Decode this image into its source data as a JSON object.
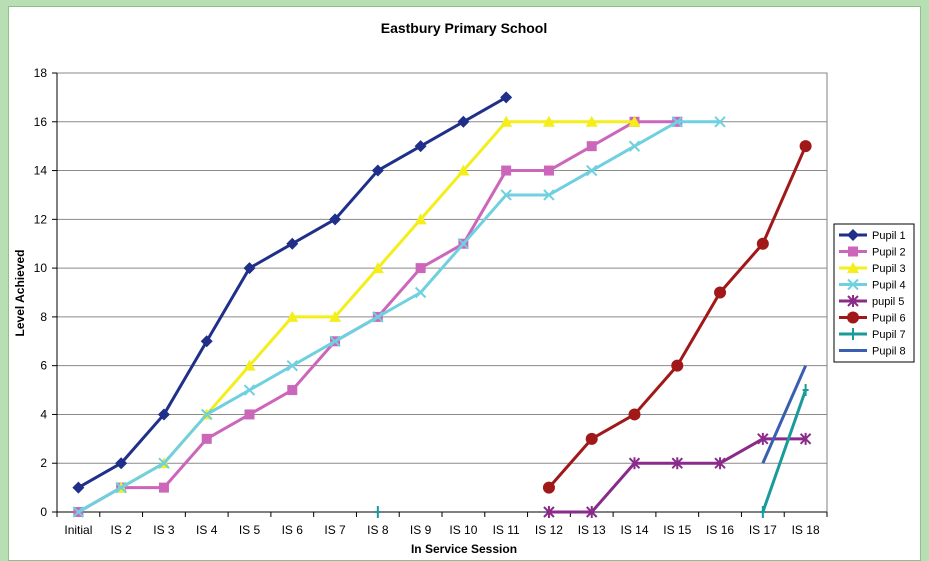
{
  "chart_data": {
    "type": "line",
    "title": "Eastbury Primary School",
    "xlabel": "In Service Session",
    "ylabel": "Level Achieved",
    "categories": [
      "Initial",
      "IS 2",
      "IS 3",
      "IS 4",
      "IS 5",
      "IS 6",
      "IS 7",
      "IS 8",
      "IS 9",
      "IS 10",
      "IS 11",
      "IS 12",
      "IS 13",
      "IS 14",
      "IS 15",
      "IS 16",
      "IS 17",
      "IS 18"
    ],
    "ylim": [
      0,
      18
    ],
    "yticks": [
      0,
      2,
      4,
      6,
      8,
      10,
      12,
      14,
      16,
      18
    ],
    "grid": true,
    "legend_position": "right",
    "series": [
      {
        "name": "Pupil 1",
        "color": "#1f2f8a",
        "marker": "diamond",
        "values": [
          1,
          2,
          4,
          7,
          10,
          11,
          12,
          14,
          15,
          16,
          17,
          null,
          null,
          null,
          null,
          null,
          null,
          null
        ]
      },
      {
        "name": "Pupil 2",
        "color": "#cc66bb",
        "marker": "square",
        "values": [
          0,
          1,
          1,
          3,
          4,
          5,
          7,
          8,
          10,
          11,
          14,
          14,
          15,
          16,
          16,
          null,
          null,
          null
        ]
      },
      {
        "name": "Pupil 3",
        "color": "#f4ee1a",
        "marker": "triangle",
        "values": [
          null,
          1,
          2,
          4,
          6,
          8,
          8,
          10,
          12,
          14,
          16,
          16,
          16,
          16,
          null,
          null,
          null,
          null
        ]
      },
      {
        "name": "Pupil 4",
        "color": "#6fd0e0",
        "marker": "x",
        "values": [
          0,
          1,
          2,
          4,
          5,
          6,
          7,
          8,
          9,
          11,
          13,
          13,
          14,
          15,
          16,
          16,
          null,
          null
        ]
      },
      {
        "name": "pupil 5",
        "color": "#8a2a8a",
        "marker": "star",
        "values": [
          null,
          null,
          null,
          null,
          null,
          null,
          null,
          null,
          null,
          null,
          null,
          0,
          0,
          2,
          2,
          2,
          3,
          3
        ]
      },
      {
        "name": "Pupil 6",
        "color": "#a01818",
        "marker": "circle",
        "values": [
          null,
          null,
          null,
          null,
          null,
          null,
          null,
          null,
          null,
          null,
          null,
          1,
          3,
          4,
          6,
          9,
          11,
          15
        ]
      },
      {
        "name": "Pupil 7",
        "color": "#1a9a9a",
        "marker": "plus",
        "values": [
          null,
          null,
          null,
          null,
          null,
          null,
          null,
          0,
          null,
          null,
          null,
          null,
          null,
          null,
          null,
          null,
          0,
          5
        ]
      },
      {
        "name": "Pupil 8",
        "color": "#3a5fb0",
        "marker": "none",
        "values": [
          null,
          null,
          null,
          null,
          null,
          null,
          null,
          null,
          null,
          null,
          null,
          null,
          null,
          null,
          null,
          null,
          2,
          6
        ]
      }
    ]
  }
}
